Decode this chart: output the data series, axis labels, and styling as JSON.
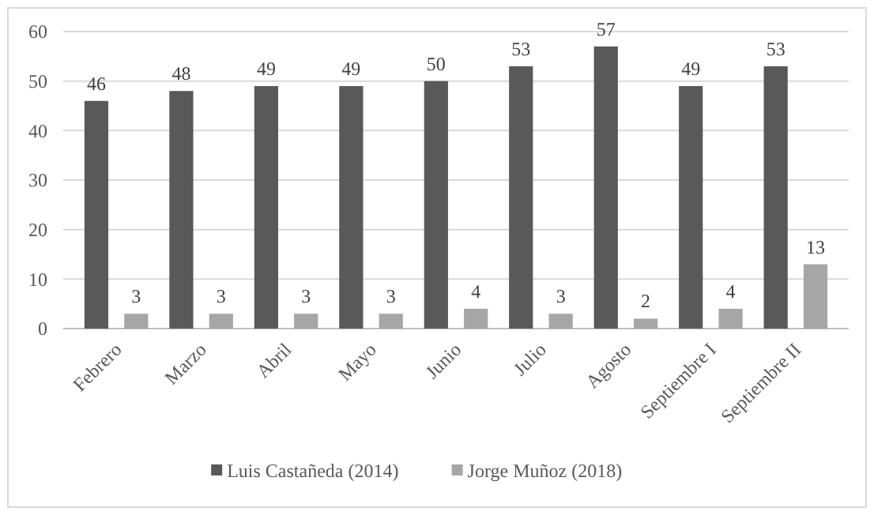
{
  "chart_data": {
    "type": "bar",
    "categories": [
      "Febrero",
      "Marzo",
      "Abril",
      "Mayo",
      "Junio",
      "Julio",
      "Agosto",
      "Septiembre I",
      "Septiembre II"
    ],
    "series": [
      {
        "name": "Luis Castañeda (2014)",
        "color": "#595959",
        "values": [
          46,
          48,
          49,
          49,
          50,
          53,
          57,
          49,
          53
        ]
      },
      {
        "name": "Jorge Muñoz (2018)",
        "color": "#a6a6a6",
        "values": [
          3,
          3,
          3,
          3,
          4,
          3,
          2,
          4,
          13
        ]
      }
    ],
    "ylim": [
      0,
      60
    ],
    "yticks": [
      0,
      10,
      20,
      30,
      40,
      50,
      60
    ],
    "grid": "y",
    "legend": "bottom",
    "data_labels": true
  }
}
